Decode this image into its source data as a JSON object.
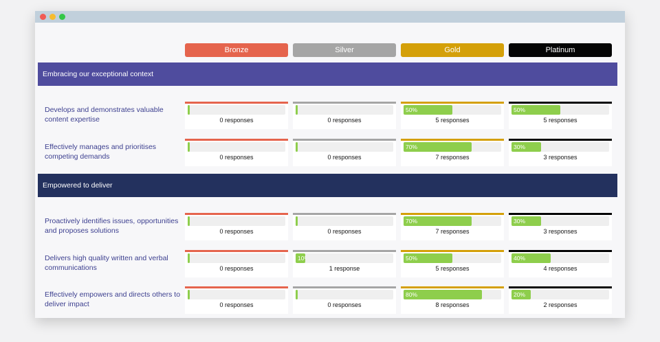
{
  "levels": [
    {
      "label": "Bronze",
      "color": "#e5644d"
    },
    {
      "label": "Silver",
      "color": "#a5a5a5"
    },
    {
      "label": "Gold",
      "color": "#d4a009"
    },
    {
      "label": "Platinum",
      "color": "#050505"
    }
  ],
  "sections": [
    {
      "title": "Embracing our exceptional context",
      "color": "#4f4c9e",
      "rows": [
        {
          "label": "Develops and demonstrates valuable content expertise",
          "cells": [
            {
              "percent": 0,
              "percent_label": "",
              "responses": "0 responses"
            },
            {
              "percent": 0,
              "percent_label": "",
              "responses": "0 responses"
            },
            {
              "percent": 50,
              "percent_label": "50%",
              "responses": "5 responses"
            },
            {
              "percent": 50,
              "percent_label": "50%",
              "responses": "5 responses"
            }
          ]
        },
        {
          "label": "Effectively manages and prioritises competing demands",
          "cells": [
            {
              "percent": 0,
              "percent_label": "",
              "responses": "0 responses"
            },
            {
              "percent": 0,
              "percent_label": "",
              "responses": "0 responses"
            },
            {
              "percent": 70,
              "percent_label": "70%",
              "responses": "7 responses"
            },
            {
              "percent": 30,
              "percent_label": "30%",
              "responses": "3 responses"
            }
          ]
        }
      ]
    },
    {
      "title": "Empowered to deliver",
      "color": "#23315e",
      "rows": [
        {
          "label": "Proactively identifies issues, opportunities and proposes solutions",
          "cells": [
            {
              "percent": 0,
              "percent_label": "",
              "responses": "0 responses"
            },
            {
              "percent": 0,
              "percent_label": "",
              "responses": "0 responses"
            },
            {
              "percent": 70,
              "percent_label": "70%",
              "responses": "7 responses"
            },
            {
              "percent": 30,
              "percent_label": "30%",
              "responses": "3 responses"
            }
          ]
        },
        {
          "label": "Delivers high quality written and verbal communications",
          "cells": [
            {
              "percent": 0,
              "percent_label": "",
              "responses": "0 responses"
            },
            {
              "percent": 10,
              "percent_label": "10%",
              "responses": "1 response"
            },
            {
              "percent": 50,
              "percent_label": "50%",
              "responses": "5 responses"
            },
            {
              "percent": 40,
              "percent_label": "40%",
              "responses": "4 responses"
            }
          ]
        },
        {
          "label": "Effectively empowers and directs others to deliver impact",
          "cells": [
            {
              "percent": 0,
              "percent_label": "",
              "responses": "0 responses"
            },
            {
              "percent": 0,
              "percent_label": "",
              "responses": "0 responses"
            },
            {
              "percent": 80,
              "percent_label": "80%",
              "responses": "8 responses"
            },
            {
              "percent": 20,
              "percent_label": "20%",
              "responses": "2 responses"
            }
          ]
        }
      ]
    }
  ]
}
